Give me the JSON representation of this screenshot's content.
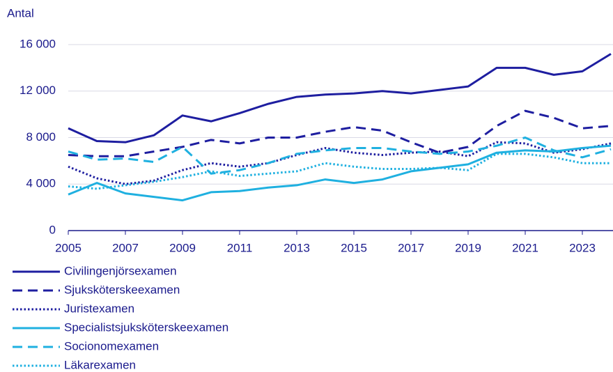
{
  "chart_data": {
    "type": "line",
    "y_label": "Antal",
    "x": [
      2005,
      2006,
      2007,
      2008,
      2009,
      2010,
      2011,
      2012,
      2013,
      2014,
      2015,
      2016,
      2017,
      2018,
      2019,
      2020,
      2021,
      2022,
      2023,
      2024
    ],
    "xlim": [
      2005,
      2024
    ],
    "xticks": [
      2005,
      2007,
      2009,
      2011,
      2013,
      2015,
      2017,
      2019,
      2021,
      2023
    ],
    "ylim": [
      0,
      16000
    ],
    "yticks": [
      0,
      {
        "value": 4000,
        "label": "4 000"
      },
      {
        "value": 8000,
        "label": "8 000"
      },
      {
        "value": 12000,
        "label": "12 000"
      },
      {
        "value": 16000,
        "label": "16 000"
      }
    ],
    "grid": true,
    "series": [
      {
        "name": "Civilingenjörsexamen",
        "color": "#1e1ea0",
        "dash": "solid",
        "values": [
          8800,
          7700,
          7600,
          8200,
          9900,
          9400,
          10100,
          10900,
          11500,
          11700,
          11800,
          12000,
          11800,
          12100,
          12400,
          14000,
          14000,
          13400,
          13700,
          15200
        ]
      },
      {
        "name": "Sjuksköterskeexamen",
        "color": "#1e1ea0",
        "dash": "dashed",
        "values": [
          6500,
          6400,
          6400,
          6800,
          7200,
          7800,
          7500,
          8000,
          8000,
          8500,
          8900,
          8600,
          7600,
          6700,
          7200,
          9000,
          10300,
          9700,
          8800,
          9000
        ]
      },
      {
        "name": "Juristexamen",
        "color": "#1e1ea0",
        "dash": "dotted",
        "values": [
          5500,
          4500,
          4000,
          4300,
          5200,
          5800,
          5500,
          5800,
          6500,
          7100,
          6700,
          6500,
          6700,
          6800,
          6400,
          7600,
          7500,
          6700,
          7000,
          7500
        ]
      },
      {
        "name": "Specialistsjuksköterskeexamen",
        "color": "#1fb0e0",
        "dash": "solid",
        "values": [
          3100,
          4100,
          3200,
          2900,
          2600,
          3300,
          3400,
          3700,
          3900,
          4400,
          4100,
          4400,
          5100,
          5400,
          5700,
          6700,
          6900,
          6800,
          7100,
          7300
        ]
      },
      {
        "name": "Socionomexamen",
        "color": "#1fb0e0",
        "dash": "dashed",
        "values": [
          6800,
          6100,
          6200,
          5900,
          7200,
          4900,
          5200,
          5800,
          6600,
          6900,
          7100,
          7100,
          6800,
          6600,
          6800,
          7300,
          8000,
          6900,
          6300,
          7000
        ]
      },
      {
        "name": "Läkarexamen",
        "color": "#1fb0e0",
        "dash": "dotted",
        "values": [
          3800,
          3600,
          3900,
          4200,
          4600,
          5100,
          4700,
          4900,
          5100,
          5800,
          5500,
          5300,
          5300,
          5400,
          5200,
          6600,
          6600,
          6300,
          5800,
          5800
        ]
      }
    ]
  }
}
